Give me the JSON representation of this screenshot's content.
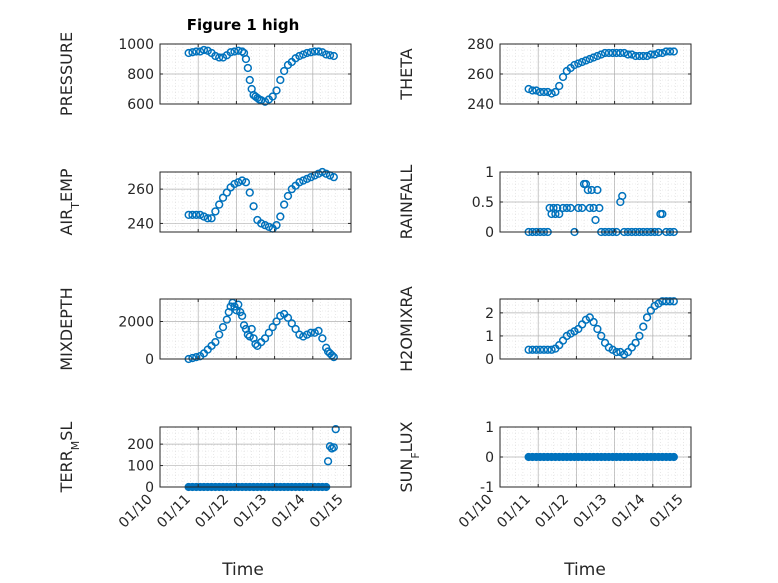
{
  "figure": {
    "title": "Figure 1 high"
  },
  "colors": {
    "marker": "#0072BD",
    "axis": "#262626",
    "grid": "#b0b0b0",
    "minor_grid": "#d9d9d9"
  },
  "chart_data": [
    {
      "type": "scatter",
      "ylabel": "PRESSURE",
      "xlabel": "",
      "title": "Figure 1 high",
      "yticks": [
        600,
        800,
        1000
      ],
      "ylim": [
        600,
        1000
      ],
      "grid": "on",
      "marker": "o",
      "x": [
        10.75,
        10.85,
        10.95,
        11.05,
        11.15,
        11.25,
        11.35,
        11.45,
        11.55,
        11.65,
        11.75,
        11.85,
        11.95,
        12.05,
        12.15,
        12.2,
        12.25,
        12.3,
        12.35,
        12.4,
        12.45,
        12.5,
        12.55,
        12.6,
        12.65,
        12.75,
        12.85,
        12.95,
        13.05,
        13.15,
        13.25,
        13.35,
        13.45,
        13.55,
        13.65,
        13.75,
        13.85,
        13.95,
        14.05,
        14.15,
        14.25,
        14.35,
        14.45,
        14.55
      ],
      "y": [
        940,
        945,
        950,
        950,
        960,
        955,
        940,
        920,
        910,
        910,
        925,
        945,
        950,
        955,
        950,
        940,
        900,
        840,
        760,
        700,
        660,
        650,
        640,
        630,
        625,
        615,
        630,
        650,
        690,
        760,
        820,
        860,
        880,
        905,
        920,
        930,
        940,
        945,
        950,
        950,
        945,
        930,
        925,
        920
      ]
    },
    {
      "type": "scatter",
      "ylabel": "THETA",
      "xlabel": "",
      "yticks": [
        240,
        260,
        280
      ],
      "ylim": [
        240,
        280
      ],
      "grid": "on",
      "marker": "o",
      "x": [
        10.75,
        10.85,
        10.95,
        11.05,
        11.15,
        11.25,
        11.35,
        11.45,
        11.55,
        11.65,
        11.75,
        11.85,
        11.95,
        12.05,
        12.15,
        12.25,
        12.35,
        12.45,
        12.55,
        12.65,
        12.75,
        12.85,
        12.95,
        13.05,
        13.15,
        13.25,
        13.35,
        13.45,
        13.55,
        13.65,
        13.75,
        13.85,
        13.95,
        14.05,
        14.15,
        14.25,
        14.35,
        14.45,
        14.55
      ],
      "y": [
        250,
        249,
        249,
        248,
        248,
        248,
        247,
        248,
        252,
        258,
        262,
        264,
        266,
        267,
        268,
        269,
        270,
        271,
        272,
        273,
        274,
        274,
        274,
        274,
        274,
        274,
        273,
        273,
        272,
        272,
        272,
        272,
        273,
        273,
        274,
        274,
        275,
        275,
        275
      ]
    },
    {
      "type": "scatter",
      "ylabel": "AIR_TEMP",
      "xlabel": "",
      "yticks": [
        240,
        260
      ],
      "ylim": [
        235,
        270
      ],
      "grid": "on",
      "marker": "o",
      "x": [
        10.75,
        10.85,
        10.95,
        11.05,
        11.15,
        11.25,
        11.35,
        11.45,
        11.55,
        11.65,
        11.75,
        11.85,
        11.95,
        12.05,
        12.15,
        12.25,
        12.35,
        12.45,
        12.55,
        12.65,
        12.75,
        12.85,
        12.95,
        13.05,
        13.15,
        13.25,
        13.35,
        13.45,
        13.55,
        13.65,
        13.75,
        13.85,
        13.95,
        14.05,
        14.15,
        14.25,
        14.35,
        14.45,
        14.55
      ],
      "y": [
        245,
        245,
        245,
        245,
        244,
        243,
        243,
        247,
        251,
        255,
        258,
        261,
        263,
        264,
        265,
        264,
        258,
        250,
        242,
        240,
        239,
        238,
        237,
        239,
        244,
        251,
        256,
        260,
        262,
        264,
        265,
        266,
        267,
        268,
        269,
        270,
        269,
        268,
        267
      ]
    },
    {
      "type": "scatter",
      "ylabel": "RAINFALL",
      "xlabel": "",
      "yticks": [
        0,
        0.5,
        1
      ],
      "ylim": [
        0,
        1
      ],
      "grid": "on",
      "marker": "o",
      "x": [
        10.75,
        10.85,
        10.95,
        11.05,
        11.15,
        11.25,
        11.3,
        11.35,
        11.4,
        11.45,
        11.5,
        11.55,
        11.65,
        11.75,
        11.85,
        11.95,
        12.05,
        12.15,
        12.2,
        12.25,
        12.3,
        12.35,
        12.4,
        12.45,
        12.5,
        12.55,
        12.6,
        12.65,
        12.75,
        12.85,
        12.95,
        13.05,
        13.15,
        13.2,
        13.25,
        13.35,
        13.45,
        13.55,
        13.65,
        13.75,
        13.85,
        13.95,
        14.05,
        14.15,
        14.2,
        14.25,
        14.35,
        14.45,
        14.55
      ],
      "y": [
        0,
        0,
        0,
        0,
        0,
        0,
        0.4,
        0.3,
        0.4,
        0.3,
        0.4,
        0.3,
        0.4,
        0.4,
        0.4,
        0,
        0.4,
        0.4,
        0.8,
        0.8,
        0.7,
        0.4,
        0.7,
        0.4,
        0.2,
        0.7,
        0.4,
        0,
        0,
        0,
        0,
        0,
        0.5,
        0.6,
        0,
        0,
        0,
        0,
        0,
        0,
        0,
        0,
        0,
        0,
        0.3,
        0.3,
        0,
        0,
        0
      ]
    },
    {
      "type": "scatter",
      "ylabel": "MIXDEPTH",
      "xlabel": "",
      "yticks": [
        0,
        2000
      ],
      "ylim": [
        0,
        3200
      ],
      "grid": "on",
      "marker": "o",
      "x": [
        10.75,
        10.85,
        10.95,
        11.05,
        11.15,
        11.25,
        11.35,
        11.45,
        11.55,
        11.65,
        11.75,
        11.8,
        11.85,
        11.9,
        11.95,
        12.0,
        12.05,
        12.1,
        12.15,
        12.2,
        12.25,
        12.3,
        12.35,
        12.4,
        12.45,
        12.5,
        12.55,
        12.65,
        12.75,
        12.85,
        12.95,
        13.05,
        13.15,
        13.25,
        13.35,
        13.45,
        13.55,
        13.65,
        13.75,
        13.85,
        13.95,
        14.05,
        14.15,
        14.25,
        14.35,
        14.4,
        14.45,
        14.5,
        14.55
      ],
      "y": [
        0,
        50,
        100,
        150,
        300,
        500,
        700,
        900,
        1300,
        1700,
        2100,
        2500,
        2800,
        3000,
        2800,
        2600,
        2900,
        2500,
        2300,
        1800,
        1600,
        1300,
        1200,
        1600,
        1100,
        800,
        700,
        900,
        1100,
        1400,
        1700,
        2000,
        2300,
        2400,
        2200,
        1900,
        1600,
        1300,
        1200,
        1300,
        1400,
        1400,
        1500,
        1100,
        600,
        400,
        300,
        200,
        100
      ]
    },
    {
      "type": "scatter",
      "ylabel": "H2OMIXRA",
      "xlabel": "",
      "yticks": [
        0,
        1,
        2
      ],
      "ylim": [
        0,
        2.6
      ],
      "grid": "on",
      "marker": "o",
      "x": [
        10.75,
        10.85,
        10.95,
        11.05,
        11.15,
        11.25,
        11.35,
        11.45,
        11.55,
        11.65,
        11.75,
        11.85,
        11.95,
        12.05,
        12.15,
        12.25,
        12.35,
        12.45,
        12.55,
        12.65,
        12.75,
        12.85,
        12.95,
        13.05,
        13.15,
        13.25,
        13.35,
        13.45,
        13.55,
        13.65,
        13.75,
        13.85,
        13.95,
        14.05,
        14.15,
        14.25,
        14.35,
        14.45,
        14.55
      ],
      "y": [
        0.4,
        0.4,
        0.4,
        0.4,
        0.4,
        0.4,
        0.4,
        0.45,
        0.6,
        0.8,
        1.0,
        1.1,
        1.2,
        1.3,
        1.5,
        1.7,
        1.8,
        1.6,
        1.3,
        1.0,
        0.7,
        0.5,
        0.4,
        0.3,
        0.3,
        0.2,
        0.3,
        0.5,
        0.7,
        1.0,
        1.4,
        1.8,
        2.1,
        2.3,
        2.4,
        2.5,
        2.5,
        2.5,
        2.5
      ]
    },
    {
      "type": "scatter",
      "ylabel": "TERR_MSL",
      "xlabel": "Time",
      "yticks": [
        0,
        100,
        200
      ],
      "ylim": [
        0,
        280
      ],
      "grid": "on",
      "marker": "o",
      "x": [
        10.75,
        10.85,
        10.95,
        11.05,
        11.15,
        11.25,
        11.35,
        11.45,
        11.55,
        11.65,
        11.75,
        11.85,
        11.95,
        12.05,
        12.15,
        12.25,
        12.35,
        12.45,
        12.55,
        12.65,
        12.75,
        12.85,
        12.95,
        13.05,
        13.15,
        13.25,
        13.35,
        13.45,
        13.55,
        13.65,
        13.75,
        13.85,
        13.95,
        14.05,
        14.15,
        14.25,
        14.35,
        14.4,
        14.45,
        14.5,
        14.55,
        14.6
      ],
      "y": [
        0,
        0,
        0,
        0,
        0,
        0,
        0,
        0,
        0,
        0,
        0,
        0,
        0,
        0,
        0,
        0,
        0,
        0,
        0,
        0,
        0,
        0,
        0,
        0,
        0,
        0,
        0,
        0,
        0,
        0,
        0,
        0,
        0,
        0,
        0,
        0,
        0,
        120,
        190,
        180,
        185,
        270
      ]
    },
    {
      "type": "scatter",
      "ylabel": "SUN_FLUX",
      "xlabel": "Time",
      "yticks": [
        -1,
        0,
        1
      ],
      "ylim": [
        -1,
        1
      ],
      "grid": "on",
      "marker": "o",
      "x": [
        10.75,
        10.85,
        10.95,
        11.05,
        11.15,
        11.25,
        11.35,
        11.45,
        11.55,
        11.65,
        11.75,
        11.85,
        11.95,
        12.05,
        12.15,
        12.25,
        12.35,
        12.45,
        12.55,
        12.65,
        12.75,
        12.85,
        12.95,
        13.05,
        13.15,
        13.25,
        13.35,
        13.45,
        13.55,
        13.65,
        13.75,
        13.85,
        13.95,
        14.05,
        14.15,
        14.25,
        14.35,
        14.45,
        14.55
      ],
      "y": [
        0,
        0,
        0,
        0,
        0,
        0,
        0,
        0,
        0,
        0,
        0,
        0,
        0,
        0,
        0,
        0,
        0,
        0,
        0,
        0,
        0,
        0,
        0,
        0,
        0,
        0,
        0,
        0,
        0,
        0,
        0,
        0,
        0,
        0,
        0,
        0,
        0,
        0,
        0
      ]
    }
  ],
  "xaxis": {
    "ticks": [
      "01/10",
      "01/11",
      "01/12",
      "01/13",
      "01/14",
      "01/15"
    ],
    "tick_values": [
      10,
      11,
      12,
      13,
      14,
      15
    ],
    "xlim": [
      10,
      15
    ],
    "label": "Time"
  }
}
